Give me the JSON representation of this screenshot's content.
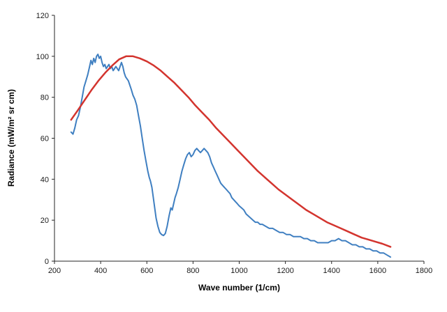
{
  "chart_data": {
    "type": "line",
    "title": "",
    "xlabel": "Wave number (1/cm)",
    "ylabel": "Radiance (mW/m² sr cm)",
    "xlim": [
      200,
      1800
    ],
    "ylim": [
      0,
      120
    ],
    "xticks": [
      200,
      400,
      600,
      800,
      1000,
      1200,
      1400,
      1600,
      1800
    ],
    "yticks": [
      0,
      20,
      40,
      60,
      80,
      100,
      120
    ],
    "grid": false,
    "legend_position": "none",
    "axis_color": "#262626",
    "background_color": "#ffffff",
    "series": [
      {
        "name": "measured-spectrum",
        "color": "#3f7fc1",
        "width": 2,
        "points": [
          [
            272,
            63
          ],
          [
            280,
            62
          ],
          [
            288,
            65
          ],
          [
            296,
            69
          ],
          [
            304,
            71
          ],
          [
            312,
            75
          ],
          [
            320,
            80
          ],
          [
            328,
            85
          ],
          [
            336,
            88
          ],
          [
            344,
            91
          ],
          [
            352,
            95
          ],
          [
            358,
            98
          ],
          [
            364,
            96
          ],
          [
            370,
            99
          ],
          [
            376,
            97
          ],
          [
            382,
            100
          ],
          [
            388,
            101
          ],
          [
            394,
            99
          ],
          [
            400,
            100
          ],
          [
            406,
            97
          ],
          [
            412,
            95
          ],
          [
            418,
            96
          ],
          [
            424,
            94
          ],
          [
            430,
            95
          ],
          [
            436,
            96
          ],
          [
            442,
            94
          ],
          [
            448,
            95
          ],
          [
            454,
            93
          ],
          [
            460,
            94
          ],
          [
            466,
            95
          ],
          [
            472,
            94
          ],
          [
            478,
            93
          ],
          [
            484,
            95
          ],
          [
            490,
            97
          ],
          [
            496,
            95
          ],
          [
            502,
            92
          ],
          [
            508,
            90
          ],
          [
            514,
            89
          ],
          [
            520,
            88
          ],
          [
            526,
            86
          ],
          [
            532,
            84
          ],
          [
            540,
            81
          ],
          [
            548,
            79
          ],
          [
            556,
            76
          ],
          [
            564,
            71
          ],
          [
            572,
            66
          ],
          [
            580,
            60
          ],
          [
            588,
            54
          ],
          [
            596,
            49
          ],
          [
            604,
            44
          ],
          [
            610,
            41
          ],
          [
            616,
            39
          ],
          [
            622,
            36
          ],
          [
            628,
            31
          ],
          [
            634,
            26
          ],
          [
            640,
            21
          ],
          [
            648,
            17
          ],
          [
            656,
            14
          ],
          [
            664,
            13
          ],
          [
            672,
            12.5
          ],
          [
            680,
            13.5
          ],
          [
            688,
            17
          ],
          [
            696,
            22
          ],
          [
            704,
            26
          ],
          [
            710,
            25
          ],
          [
            716,
            28
          ],
          [
            722,
            31
          ],
          [
            728,
            33
          ],
          [
            736,
            36
          ],
          [
            744,
            40
          ],
          [
            752,
            44
          ],
          [
            760,
            47
          ],
          [
            768,
            50
          ],
          [
            776,
            52
          ],
          [
            784,
            53
          ],
          [
            792,
            51
          ],
          [
            800,
            52
          ],
          [
            808,
            54
          ],
          [
            816,
            55
          ],
          [
            824,
            54
          ],
          [
            832,
            53
          ],
          [
            840,
            54
          ],
          [
            848,
            55
          ],
          [
            856,
            54
          ],
          [
            864,
            53
          ],
          [
            872,
            51
          ],
          [
            880,
            48
          ],
          [
            888,
            46
          ],
          [
            896,
            44
          ],
          [
            904,
            42
          ],
          [
            912,
            40
          ],
          [
            920,
            38
          ],
          [
            928,
            37
          ],
          [
            936,
            36
          ],
          [
            944,
            35
          ],
          [
            952,
            34
          ],
          [
            960,
            33
          ],
          [
            968,
            31
          ],
          [
            976,
            30
          ],
          [
            984,
            29
          ],
          [
            992,
            28
          ],
          [
            1000,
            27
          ],
          [
            1010,
            26
          ],
          [
            1020,
            25
          ],
          [
            1030,
            23
          ],
          [
            1040,
            22
          ],
          [
            1050,
            21
          ],
          [
            1060,
            20
          ],
          [
            1070,
            19
          ],
          [
            1080,
            19
          ],
          [
            1090,
            18
          ],
          [
            1100,
            18
          ],
          [
            1115,
            17
          ],
          [
            1130,
            16
          ],
          [
            1145,
            16
          ],
          [
            1160,
            15
          ],
          [
            1175,
            14
          ],
          [
            1190,
            14
          ],
          [
            1205,
            13
          ],
          [
            1220,
            13
          ],
          [
            1235,
            12
          ],
          [
            1250,
            12
          ],
          [
            1265,
            12
          ],
          [
            1280,
            11
          ],
          [
            1295,
            11
          ],
          [
            1310,
            10
          ],
          [
            1325,
            10
          ],
          [
            1340,
            9
          ],
          [
            1355,
            9
          ],
          [
            1370,
            9
          ],
          [
            1385,
            9
          ],
          [
            1400,
            10
          ],
          [
            1415,
            10
          ],
          [
            1430,
            11
          ],
          [
            1445,
            10
          ],
          [
            1460,
            10
          ],
          [
            1475,
            9
          ],
          [
            1490,
            8
          ],
          [
            1505,
            8
          ],
          [
            1520,
            7
          ],
          [
            1535,
            7
          ],
          [
            1550,
            6
          ],
          [
            1565,
            6
          ],
          [
            1580,
            5
          ],
          [
            1595,
            5
          ],
          [
            1610,
            4
          ],
          [
            1625,
            4
          ],
          [
            1640,
            3
          ],
          [
            1655,
            2
          ]
        ]
      },
      {
        "name": "smooth-blackbody-curve",
        "color": "#d3342e",
        "width": 2.5,
        "points": [
          [
            272,
            69
          ],
          [
            300,
            73.5
          ],
          [
            330,
            78.5
          ],
          [
            360,
            83.5
          ],
          [
            390,
            88
          ],
          [
            420,
            92
          ],
          [
            450,
            95.5
          ],
          [
            480,
            98.5
          ],
          [
            510,
            100
          ],
          [
            540,
            100
          ],
          [
            570,
            99
          ],
          [
            600,
            97.5
          ],
          [
            630,
            95.5
          ],
          [
            660,
            93
          ],
          [
            690,
            90
          ],
          [
            720,
            87
          ],
          [
            750,
            83.5
          ],
          [
            780,
            80
          ],
          [
            810,
            76
          ],
          [
            840,
            72.5
          ],
          [
            870,
            69
          ],
          [
            900,
            65
          ],
          [
            930,
            61.5
          ],
          [
            960,
            58
          ],
          [
            990,
            54.5
          ],
          [
            1020,
            51
          ],
          [
            1050,
            47.5
          ],
          [
            1080,
            44
          ],
          [
            1110,
            41
          ],
          [
            1140,
            38
          ],
          [
            1170,
            35
          ],
          [
            1200,
            32.5
          ],
          [
            1230,
            30
          ],
          [
            1260,
            27.5
          ],
          [
            1290,
            25
          ],
          [
            1320,
            23
          ],
          [
            1350,
            21
          ],
          [
            1380,
            19
          ],
          [
            1410,
            17.5
          ],
          [
            1440,
            16
          ],
          [
            1470,
            14.5
          ],
          [
            1500,
            13
          ],
          [
            1530,
            11.5
          ],
          [
            1560,
            10.5
          ],
          [
            1590,
            9.5
          ],
          [
            1620,
            8.5
          ],
          [
            1655,
            7
          ]
        ]
      }
    ]
  }
}
